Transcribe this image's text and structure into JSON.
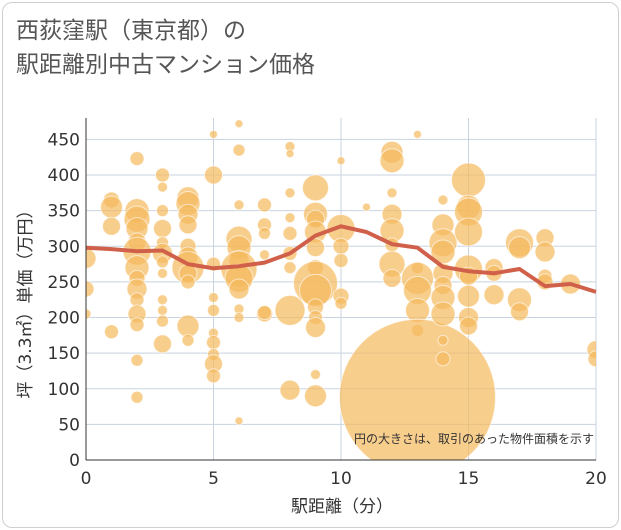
{
  "title_line1": "西荻窪駅（東京都）の",
  "title_line2": "駅距離別中古マンション価格",
  "chart_data": {
    "type": "scatter",
    "xlabel": "駅距離（分）",
    "ylabel": "坪（3.3㎡）単価（万円）",
    "xlim": [
      0,
      20
    ],
    "ylim": [
      0,
      480
    ],
    "xticks": [
      "0",
      "5",
      "10",
      "15",
      "20"
    ],
    "yticks": [
      "0",
      "50",
      "100",
      "150",
      "200",
      "250",
      "300",
      "350",
      "400",
      "450"
    ],
    "annotation": "円の大きさは、取引のあった物件面積を示す",
    "bubble_color": "#f5b95c",
    "line_color": "#d0604a",
    "trend_line": {
      "x": [
        0,
        1,
        2,
        3,
        4,
        5,
        6,
        7,
        8,
        9,
        10,
        11,
        12,
        13,
        14,
        15,
        16,
        17,
        18,
        19,
        20
      ],
      "y": [
        298,
        296,
        293,
        294,
        275,
        269,
        272,
        277,
        290,
        315,
        328,
        320,
        303,
        298,
        271,
        265,
        262,
        268,
        244,
        247,
        236
      ]
    },
    "points": [
      {
        "x": 0,
        "y": 283,
        "r": 10
      },
      {
        "x": 0,
        "y": 240,
        "r": 8
      },
      {
        "x": 0,
        "y": 205,
        "r": 5
      },
      {
        "x": 1,
        "y": 365,
        "r": 8
      },
      {
        "x": 1,
        "y": 355,
        "r": 11
      },
      {
        "x": 1,
        "y": 328,
        "r": 9
      },
      {
        "x": 1,
        "y": 180,
        "r": 7
      },
      {
        "x": 2,
        "y": 423,
        "r": 7
      },
      {
        "x": 2,
        "y": 350,
        "r": 12
      },
      {
        "x": 2,
        "y": 338,
        "r": 13
      },
      {
        "x": 2,
        "y": 325,
        "r": 11
      },
      {
        "x": 2,
        "y": 306,
        "r": 9
      },
      {
        "x": 2,
        "y": 293,
        "r": 14
      },
      {
        "x": 2,
        "y": 270,
        "r": 12
      },
      {
        "x": 2,
        "y": 255,
        "r": 8
      },
      {
        "x": 2,
        "y": 240,
        "r": 10
      },
      {
        "x": 2,
        "y": 225,
        "r": 7
      },
      {
        "x": 2,
        "y": 205,
        "r": 9
      },
      {
        "x": 2,
        "y": 190,
        "r": 7
      },
      {
        "x": 2,
        "y": 140,
        "r": 6
      },
      {
        "x": 2,
        "y": 88,
        "r": 6
      },
      {
        "x": 3,
        "y": 400,
        "r": 7
      },
      {
        "x": 3,
        "y": 383,
        "r": 5
      },
      {
        "x": 3,
        "y": 350,
        "r": 6
      },
      {
        "x": 3,
        "y": 325,
        "r": 9
      },
      {
        "x": 3,
        "y": 305,
        "r": 6
      },
      {
        "x": 3,
        "y": 290,
        "r": 10
      },
      {
        "x": 3,
        "y": 278,
        "r": 6
      },
      {
        "x": 3,
        "y": 262,
        "r": 5
      },
      {
        "x": 3,
        "y": 225,
        "r": 5
      },
      {
        "x": 3,
        "y": 210,
        "r": 5
      },
      {
        "x": 3,
        "y": 195,
        "r": 6
      },
      {
        "x": 3,
        "y": 163,
        "r": 9
      },
      {
        "x": 4,
        "y": 368,
        "r": 11
      },
      {
        "x": 4,
        "y": 360,
        "r": 12
      },
      {
        "x": 4,
        "y": 345,
        "r": 10
      },
      {
        "x": 4,
        "y": 330,
        "r": 9
      },
      {
        "x": 4,
        "y": 300,
        "r": 8
      },
      {
        "x": 4,
        "y": 285,
        "r": 10
      },
      {
        "x": 4,
        "y": 270,
        "r": 16
      },
      {
        "x": 4,
        "y": 262,
        "r": 9
      },
      {
        "x": 4,
        "y": 250,
        "r": 7
      },
      {
        "x": 4,
        "y": 188,
        "r": 11
      },
      {
        "x": 4,
        "y": 168,
        "r": 6
      },
      {
        "x": 5,
        "y": 457,
        "r": 4
      },
      {
        "x": 5,
        "y": 400,
        "r": 9
      },
      {
        "x": 5,
        "y": 275,
        "r": 7
      },
      {
        "x": 5,
        "y": 228,
        "r": 5
      },
      {
        "x": 5,
        "y": 210,
        "r": 6
      },
      {
        "x": 5,
        "y": 178,
        "r": 5
      },
      {
        "x": 5,
        "y": 165,
        "r": 7
      },
      {
        "x": 5,
        "y": 148,
        "r": 6
      },
      {
        "x": 5,
        "y": 135,
        "r": 9
      },
      {
        "x": 5,
        "y": 118,
        "r": 7
      },
      {
        "x": 6,
        "y": 472,
        "r": 4
      },
      {
        "x": 6,
        "y": 435,
        "r": 6
      },
      {
        "x": 6,
        "y": 358,
        "r": 5
      },
      {
        "x": 6,
        "y": 310,
        "r": 13
      },
      {
        "x": 6,
        "y": 298,
        "r": 12
      },
      {
        "x": 6,
        "y": 280,
        "r": 10
      },
      {
        "x": 6,
        "y": 268,
        "r": 18
      },
      {
        "x": 6,
        "y": 255,
        "r": 14
      },
      {
        "x": 6,
        "y": 240,
        "r": 10
      },
      {
        "x": 6,
        "y": 212,
        "r": 5
      },
      {
        "x": 6,
        "y": 200,
        "r": 5
      },
      {
        "x": 6,
        "y": 55,
        "r": 4
      },
      {
        "x": 7,
        "y": 358,
        "r": 7
      },
      {
        "x": 7,
        "y": 330,
        "r": 7
      },
      {
        "x": 7,
        "y": 318,
        "r": 6
      },
      {
        "x": 7,
        "y": 288,
        "r": 5
      },
      {
        "x": 7,
        "y": 205,
        "r": 8
      },
      {
        "x": 7,
        "y": 207,
        "r": 7
      },
      {
        "x": 8,
        "y": 440,
        "r": 5
      },
      {
        "x": 8,
        "y": 430,
        "r": 4
      },
      {
        "x": 8,
        "y": 375,
        "r": 5
      },
      {
        "x": 8,
        "y": 340,
        "r": 5
      },
      {
        "x": 8,
        "y": 318,
        "r": 7
      },
      {
        "x": 8,
        "y": 290,
        "r": 7
      },
      {
        "x": 8,
        "y": 270,
        "r": 6
      },
      {
        "x": 8,
        "y": 210,
        "r": 15
      },
      {
        "x": 8,
        "y": 98,
        "r": 10
      },
      {
        "x": 9,
        "y": 382,
        "r": 13
      },
      {
        "x": 9,
        "y": 345,
        "r": 12
      },
      {
        "x": 9,
        "y": 338,
        "r": 9
      },
      {
        "x": 9,
        "y": 320,
        "r": 11
      },
      {
        "x": 9,
        "y": 298,
        "r": 9
      },
      {
        "x": 9,
        "y": 270,
        "r": 8
      },
      {
        "x": 9,
        "y": 248,
        "r": 22
      },
      {
        "x": 9,
        "y": 238,
        "r": 16
      },
      {
        "x": 9,
        "y": 215,
        "r": 8
      },
      {
        "x": 9,
        "y": 200,
        "r": 7
      },
      {
        "x": 9,
        "y": 186,
        "r": 10
      },
      {
        "x": 9,
        "y": 120,
        "r": 5
      },
      {
        "x": 9,
        "y": 90,
        "r": 11
      },
      {
        "x": 10,
        "y": 420,
        "r": 4
      },
      {
        "x": 10,
        "y": 325,
        "r": 14
      },
      {
        "x": 10,
        "y": 300,
        "r": 8
      },
      {
        "x": 10,
        "y": 280,
        "r": 7
      },
      {
        "x": 10,
        "y": 230,
        "r": 8
      },
      {
        "x": 10,
        "y": 220,
        "r": 6
      },
      {
        "x": 11,
        "y": 355,
        "r": 4
      },
      {
        "x": 12,
        "y": 432,
        "r": 11
      },
      {
        "x": 12,
        "y": 420,
        "r": 12
      },
      {
        "x": 12,
        "y": 375,
        "r": 5
      },
      {
        "x": 12,
        "y": 345,
        "r": 10
      },
      {
        "x": 12,
        "y": 322,
        "r": 12
      },
      {
        "x": 12,
        "y": 302,
        "r": 7
      },
      {
        "x": 12,
        "y": 275,
        "r": 13
      },
      {
        "x": 12,
        "y": 255,
        "r": 9
      },
      {
        "x": 13,
        "y": 457,
        "r": 4
      },
      {
        "x": 13,
        "y": 270,
        "r": 6
      },
      {
        "x": 13,
        "y": 255,
        "r": 16
      },
      {
        "x": 13,
        "y": 238,
        "r": 14
      },
      {
        "x": 13,
        "y": 210,
        "r": 12
      },
      {
        "x": 13,
        "y": 182,
        "r": 6
      },
      {
        "x": 13,
        "y": 88,
        "r": 78
      },
      {
        "x": 14,
        "y": 365,
        "r": 5
      },
      {
        "x": 14,
        "y": 330,
        "r": 11
      },
      {
        "x": 14,
        "y": 305,
        "r": 14
      },
      {
        "x": 14,
        "y": 292,
        "r": 12
      },
      {
        "x": 14,
        "y": 262,
        "r": 10
      },
      {
        "x": 14,
        "y": 245,
        "r": 9
      },
      {
        "x": 14,
        "y": 228,
        "r": 12
      },
      {
        "x": 14,
        "y": 205,
        "r": 12
      },
      {
        "x": 14,
        "y": 168,
        "r": 5
      },
      {
        "x": 14,
        "y": 142,
        "r": 7
      },
      {
        "x": 15,
        "y": 393,
        "r": 17
      },
      {
        "x": 15,
        "y": 355,
        "r": 12
      },
      {
        "x": 15,
        "y": 348,
        "r": 14
      },
      {
        "x": 15,
        "y": 320,
        "r": 14
      },
      {
        "x": 15,
        "y": 268,
        "r": 14
      },
      {
        "x": 15,
        "y": 258,
        "r": 9
      },
      {
        "x": 15,
        "y": 230,
        "r": 11
      },
      {
        "x": 15,
        "y": 200,
        "r": 10
      },
      {
        "x": 15,
        "y": 188,
        "r": 9
      },
      {
        "x": 16,
        "y": 270,
        "r": 9
      },
      {
        "x": 16,
        "y": 262,
        "r": 8
      },
      {
        "x": 16,
        "y": 232,
        "r": 10
      },
      {
        "x": 17,
        "y": 305,
        "r": 14
      },
      {
        "x": 17,
        "y": 298,
        "r": 11
      },
      {
        "x": 17,
        "y": 225,
        "r": 12
      },
      {
        "x": 17,
        "y": 208,
        "r": 9
      },
      {
        "x": 18,
        "y": 312,
        "r": 9
      },
      {
        "x": 18,
        "y": 292,
        "r": 10
      },
      {
        "x": 18,
        "y": 258,
        "r": 7
      },
      {
        "x": 18,
        "y": 250,
        "r": 8
      },
      {
        "x": 19,
        "y": 247,
        "r": 10
      },
      {
        "x": 20,
        "y": 155,
        "r": 9
      },
      {
        "x": 20,
        "y": 142,
        "r": 8
      }
    ]
  }
}
